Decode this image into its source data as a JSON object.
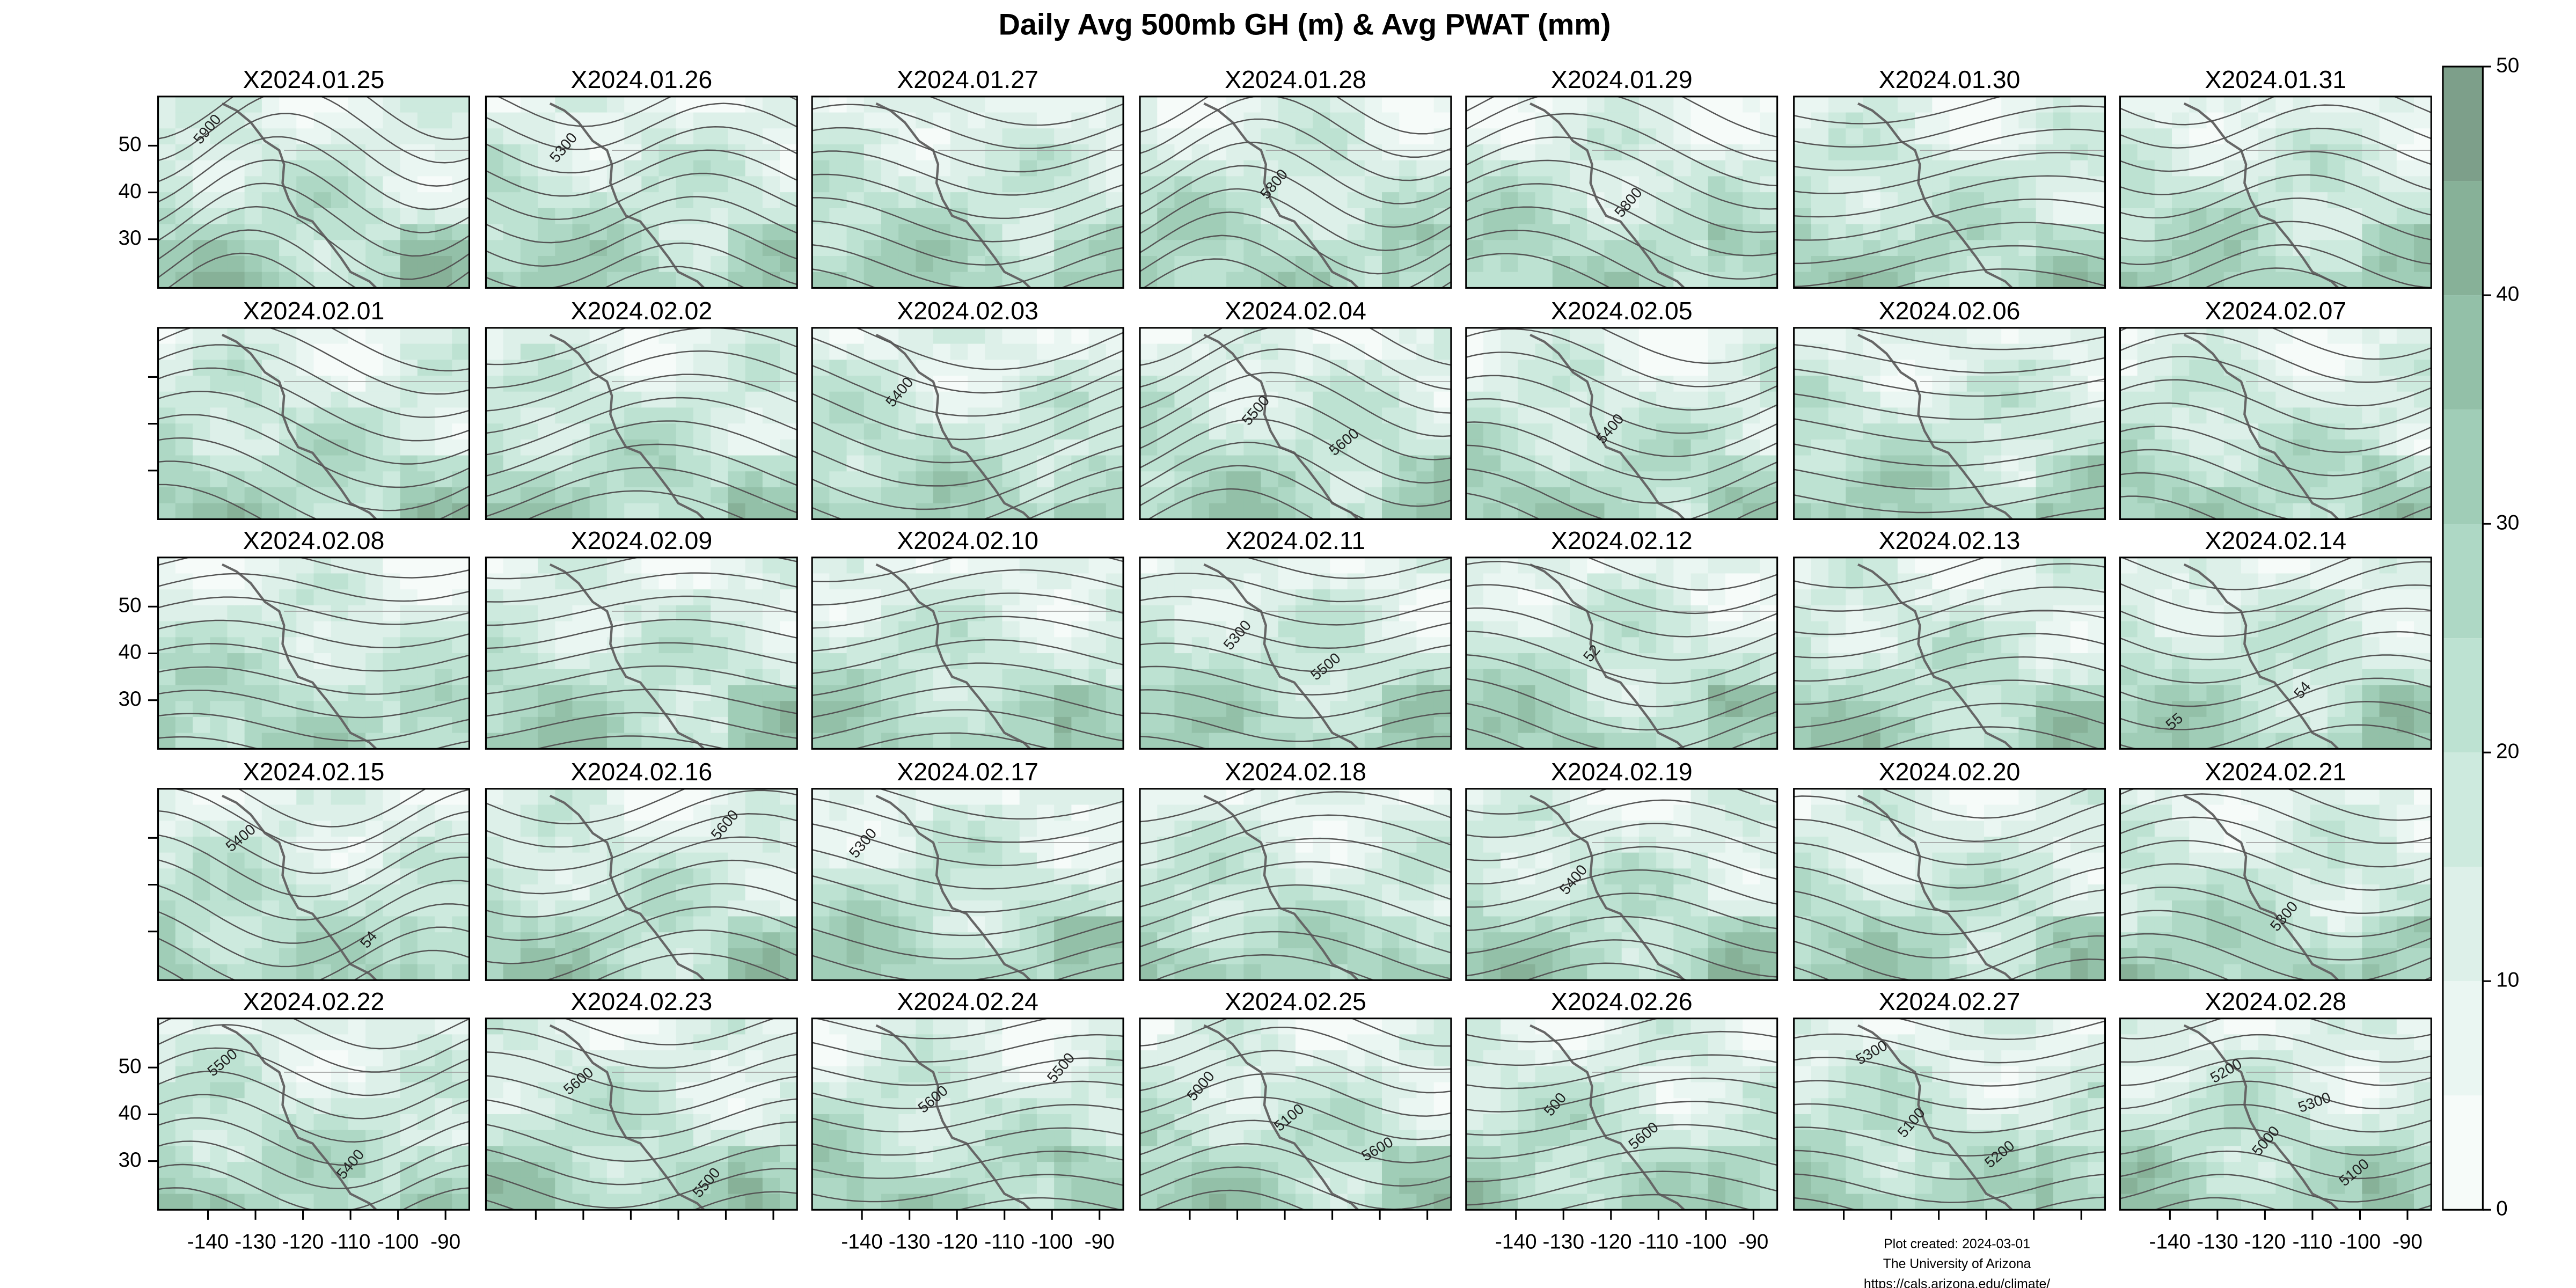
{
  "title": "Daily Avg 500mb GH (m) & Avg PWAT (mm)",
  "panels": [
    {
      "title": "X2024.01.25",
      "contour_labels": [
        "5900"
      ]
    },
    {
      "title": "X2024.01.26",
      "contour_labels": [
        "5300"
      ]
    },
    {
      "title": "X2024.01.27",
      "contour_labels": []
    },
    {
      "title": "X2024.01.28",
      "contour_labels": [
        "5800"
      ]
    },
    {
      "title": "X2024.01.29",
      "contour_labels": [
        "5800"
      ]
    },
    {
      "title": "X2024.01.30",
      "contour_labels": []
    },
    {
      "title": "X2024.01.31",
      "contour_labels": []
    },
    {
      "title": "X2024.02.01",
      "contour_labels": []
    },
    {
      "title": "X2024.02.02",
      "contour_labels": []
    },
    {
      "title": "X2024.02.03",
      "contour_labels": [
        "5400"
      ]
    },
    {
      "title": "X2024.02.04",
      "contour_labels": [
        "5500",
        "5600"
      ]
    },
    {
      "title": "X2024.02.05",
      "contour_labels": [
        "5400"
      ]
    },
    {
      "title": "X2024.02.06",
      "contour_labels": []
    },
    {
      "title": "X2024.02.07",
      "contour_labels": []
    },
    {
      "title": "X2024.02.08",
      "contour_labels": []
    },
    {
      "title": "X2024.02.09",
      "contour_labels": []
    },
    {
      "title": "X2024.02.10",
      "contour_labels": []
    },
    {
      "title": "X2024.02.11",
      "contour_labels": [
        "5300",
        "5500"
      ]
    },
    {
      "title": "X2024.02.12",
      "contour_labels": [
        "52"
      ]
    },
    {
      "title": "X2024.02.13",
      "contour_labels": []
    },
    {
      "title": "X2024.02.14",
      "contour_labels": [
        "54",
        "55"
      ]
    },
    {
      "title": "X2024.02.15",
      "contour_labels": [
        "54",
        "5400"
      ]
    },
    {
      "title": "X2024.02.16",
      "contour_labels": [
        "5600"
      ]
    },
    {
      "title": "X2024.02.17",
      "contour_labels": [
        "5300"
      ]
    },
    {
      "title": "X2024.02.18",
      "contour_labels": []
    },
    {
      "title": "X2024.02.19",
      "contour_labels": [
        "5400"
      ]
    },
    {
      "title": "X2024.02.20",
      "contour_labels": []
    },
    {
      "title": "X2024.02.21",
      "contour_labels": [
        "5300"
      ]
    },
    {
      "title": "X2024.02.22",
      "contour_labels": [
        "5400",
        "5500"
      ]
    },
    {
      "title": "X2024.02.23",
      "contour_labels": [
        "5500",
        "5600"
      ]
    },
    {
      "title": "X2024.02.24",
      "contour_labels": [
        "5500",
        "5600"
      ]
    },
    {
      "title": "X2024.02.25",
      "contour_labels": [
        "5000",
        "5100",
        "5600"
      ]
    },
    {
      "title": "X2024.02.26",
      "contour_labels": [
        "500",
        "5600"
      ]
    },
    {
      "title": "X2024.02.27",
      "contour_labels": [
        "5100",
        "5200",
        "5300"
      ]
    },
    {
      "title": "X2024.02.28",
      "contour_labels": [
        "5000",
        "5100",
        "5200",
        "5300"
      ]
    }
  ],
  "x_axis": {
    "ticks": [
      -140,
      -130,
      -120,
      -110,
      -100,
      -90
    ],
    "range": [
      -150.5,
      -85
    ]
  },
  "y_axis": {
    "ticks": [
      50,
      40,
      30
    ],
    "range": [
      19.6,
      60.5
    ]
  },
  "colorbar": {
    "ticks": [
      0,
      10,
      20,
      30,
      40,
      50
    ],
    "range": [
      0,
      50
    ],
    "colors": [
      "#f6fbf9",
      "#eaf6f2",
      "#ddf0e9",
      "#cdeade",
      "#bde2d2",
      "#aed8c5",
      "#a0cdb7",
      "#93c0a8",
      "#87b198",
      "#7d9f8a"
    ]
  },
  "footer": [
    "Plot created: 2024-03-01",
    "The University of Arizona",
    "https://cals.arizona.edu/climate/"
  ]
}
